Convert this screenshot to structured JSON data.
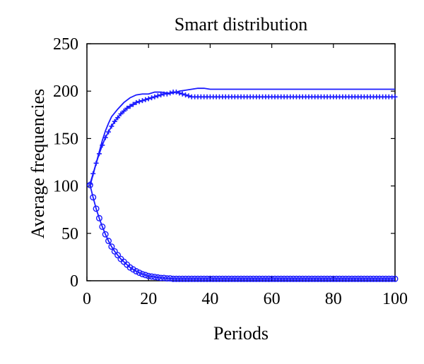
{
  "chart_data": {
    "type": "line",
    "title": "Smart distribution",
    "xlabel": "Periods",
    "ylabel": "Average frequencies",
    "xlim": [
      0,
      100
    ],
    "ylim": [
      0,
      250
    ],
    "xticks": [
      0,
      20,
      40,
      60,
      80,
      100
    ],
    "yticks": [
      0,
      50,
      100,
      150,
      200,
      250
    ],
    "grid": false,
    "colors": {
      "series": "#1a1aff",
      "axes": "#000000"
    },
    "series": [
      {
        "marker": "none",
        "x": [
          1,
          2,
          3,
          4,
          5,
          6,
          7,
          8,
          10,
          12,
          14,
          16,
          18,
          20,
          22,
          24,
          26,
          28,
          30,
          32,
          34,
          36,
          38,
          40,
          45,
          50,
          60,
          70,
          80,
          90,
          100
        ],
        "values": [
          100,
          112,
          124,
          136,
          148,
          158,
          166,
          173,
          181,
          188,
          193,
          196,
          197,
          197,
          199,
          199,
          198,
          198,
          200,
          201,
          202,
          203,
          203,
          202,
          202,
          202,
          202,
          202,
          202,
          202,
          202
        ]
      },
      {
        "marker": "plus",
        "x": [
          1,
          2,
          3,
          4,
          5,
          6,
          7,
          8,
          9,
          10,
          11,
          12,
          13,
          14,
          15,
          16,
          17,
          18,
          19,
          20,
          21,
          22,
          23,
          24,
          25,
          26,
          27,
          28,
          29,
          30,
          31,
          32,
          33,
          34,
          35,
          36,
          37,
          38,
          39,
          40,
          41,
          42,
          43,
          44,
          45,
          46,
          47,
          48,
          49,
          50,
          51,
          52,
          53,
          54,
          55,
          56,
          57,
          58,
          59,
          60,
          61,
          62,
          63,
          64,
          65,
          66,
          67,
          68,
          69,
          70,
          71,
          72,
          73,
          74,
          75,
          76,
          77,
          78,
          79,
          80,
          81,
          82,
          83,
          84,
          85,
          86,
          87,
          88,
          89,
          90,
          91,
          92,
          93,
          94,
          95,
          96,
          97,
          98,
          99,
          100
        ],
        "values": [
          102,
          113,
          124,
          134,
          143,
          151,
          157,
          163,
          168,
          172,
          176,
          179,
          182,
          184,
          186,
          188,
          189,
          190,
          191,
          192,
          193,
          194,
          195,
          196,
          197,
          197,
          198,
          199,
          199,
          198,
          197,
          196,
          195,
          194,
          194,
          194,
          194,
          194,
          194,
          194,
          194,
          194,
          194,
          194,
          194,
          194,
          194,
          194,
          194,
          194,
          194,
          194,
          194,
          194,
          194,
          194,
          194,
          194,
          194,
          194,
          194,
          194,
          194,
          194,
          194,
          194,
          194,
          194,
          194,
          194,
          194,
          194,
          194,
          194,
          194,
          194,
          194,
          194,
          194,
          194,
          194,
          194,
          194,
          194,
          194,
          194,
          194,
          194,
          194,
          194,
          194,
          194,
          194,
          194,
          194,
          194,
          194,
          194,
          194,
          194
        ]
      },
      {
        "marker": "circle",
        "x": [
          1,
          2,
          3,
          4,
          5,
          6,
          7,
          8,
          9,
          10,
          11,
          12,
          13,
          14,
          15,
          16,
          17,
          18,
          19,
          20,
          21,
          22,
          23,
          24,
          25,
          26,
          27,
          28,
          29,
          30,
          31,
          32,
          33,
          34,
          35,
          36,
          37,
          38,
          39,
          40,
          41,
          42,
          43,
          44,
          45,
          46,
          47,
          48,
          49,
          50,
          51,
          52,
          53,
          54,
          55,
          56,
          57,
          58,
          59,
          60,
          61,
          62,
          63,
          64,
          65,
          66,
          67,
          68,
          69,
          70,
          71,
          72,
          73,
          74,
          75,
          76,
          77,
          78,
          79,
          80,
          81,
          82,
          83,
          84,
          85,
          86,
          87,
          88,
          89,
          90,
          91,
          92,
          93,
          94,
          95,
          96,
          97,
          98,
          99,
          100
        ],
        "values": [
          101,
          88,
          76,
          66,
          57,
          49,
          42,
          36,
          31,
          27,
          23,
          20,
          17,
          14,
          12,
          10,
          8.5,
          7,
          6,
          5,
          4.5,
          4,
          3.5,
          3,
          3,
          2.5,
          2.5,
          2,
          2,
          2,
          2,
          2,
          2,
          2,
          2,
          2,
          2,
          2,
          2,
          2,
          2,
          2,
          2,
          2,
          2,
          2,
          2,
          2,
          2,
          2,
          2,
          2,
          2,
          2,
          2,
          2,
          2,
          2,
          2,
          2,
          2,
          2,
          2,
          2,
          2,
          2,
          2,
          2,
          2,
          2,
          2,
          2,
          2,
          2,
          2,
          2,
          2,
          2,
          2,
          2,
          2,
          2,
          2,
          2,
          2,
          2,
          2,
          2,
          2,
          2,
          2,
          2,
          2,
          2,
          2,
          2,
          2,
          2,
          2,
          2
        ]
      }
    ]
  }
}
